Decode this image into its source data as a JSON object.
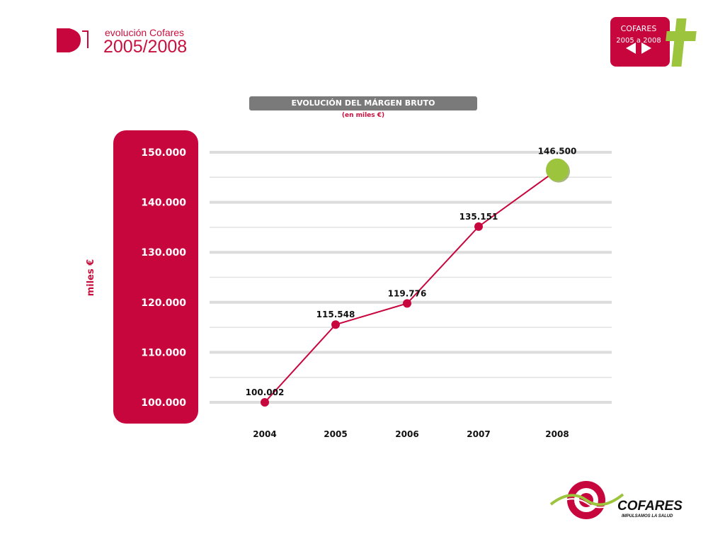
{
  "header": {
    "subtitle": "evolución Cofares",
    "years": "2005/2008"
  },
  "badge": {
    "line1": "COFARES",
    "line2": "2005 a 2008"
  },
  "chart_data": {
    "type": "line",
    "title": "EVOLUCIÓN DEL MÁRGEN BRUTO",
    "subtitle": "(en miles €)",
    "ylabel": "miles €",
    "xlabel": "",
    "categories": [
      "2004",
      "2005",
      "2006",
      "2007",
      "2008"
    ],
    "values": [
      100002,
      115548,
      119776,
      135151,
      146500
    ],
    "value_labels": [
      "100.002",
      "115.548",
      "119.776",
      "135.151",
      "146.500"
    ],
    "ylim": [
      100000,
      150000
    ],
    "y_ticks": [
      {
        "value": 150000,
        "label": "150.000"
      },
      {
        "value": 140000,
        "label": "140.000"
      },
      {
        "value": 130000,
        "label": "130.000"
      },
      {
        "value": 120000,
        "label": "120.000"
      },
      {
        "value": 110000,
        "label": "110.000"
      },
      {
        "value": 100000,
        "label": "100.000"
      }
    ],
    "minor_gridlines": [
      145000,
      135000,
      125000,
      115000,
      105000
    ],
    "grid": true,
    "line_color": "#c8063e",
    "highlight_color": "#9cc43c",
    "axis_panel_color": "#c8063e"
  },
  "logo": {
    "brand": "COFARES",
    "tagline": "IMPULSAMOS LA SALUD"
  }
}
